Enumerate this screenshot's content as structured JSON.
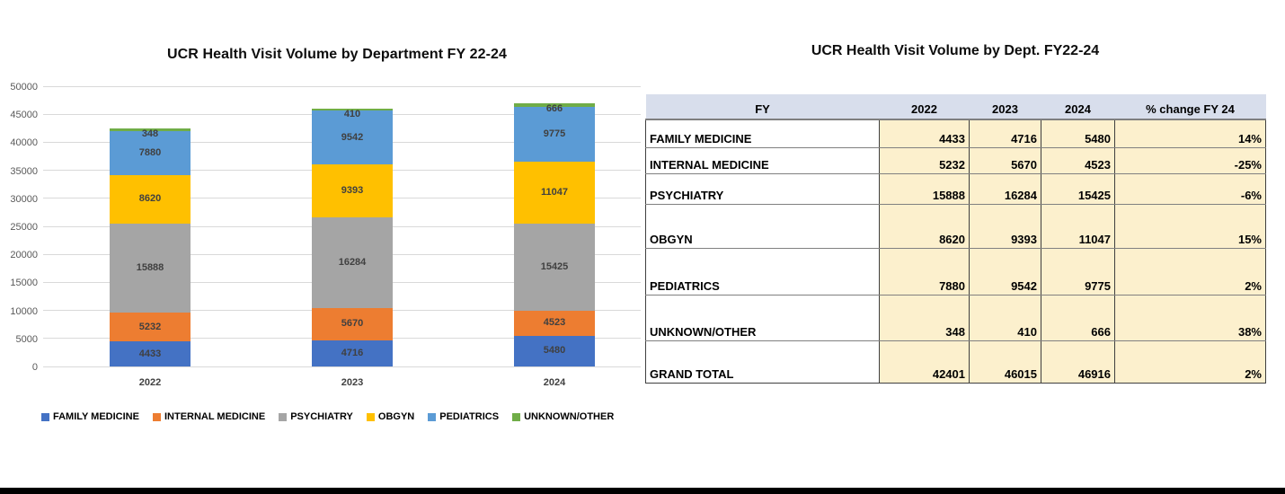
{
  "chart_data": [
    {
      "type": "bar",
      "stacked": true,
      "title": "UCR Health Visit Volume by Department FY 22-24",
      "categories": [
        "2022",
        "2023",
        "2024"
      ],
      "series": [
        {
          "name": "FAMILY MEDICINE",
          "color": "#4472C4",
          "values": [
            4433,
            4716,
            5480
          ]
        },
        {
          "name": "INTERNAL MEDICINE",
          "color": "#ED7D31",
          "values": [
            5232,
            5670,
            4523
          ]
        },
        {
          "name": "PSYCHIATRY",
          "color": "#A5A5A5",
          "values": [
            15888,
            16284,
            15425
          ]
        },
        {
          "name": "OBGYN",
          "color": "#FFC000",
          "values": [
            8620,
            9393,
            11047
          ]
        },
        {
          "name": "PEDIATRICS",
          "color": "#5B9BD5",
          "values": [
            7880,
            9542,
            9775
          ]
        },
        {
          "name": "UNKNOWN/OTHER",
          "color": "#70AD47",
          "values": [
            348,
            410,
            666
          ]
        }
      ],
      "totals": [
        42401,
        46015,
        46916
      ],
      "ylim": [
        0,
        50000
      ],
      "ytick_step": 5000,
      "grid": true,
      "legend_position": "bottom"
    },
    {
      "type": "table",
      "title": "UCR Health Visit Volume by Dept. FY22-24",
      "columns": [
        "FY",
        "2022",
        "2023",
        "2024",
        "% change FY 24"
      ],
      "rows": [
        [
          "FAMILY MEDICINE",
          "4433",
          "4716",
          "5480",
          "14%"
        ],
        [
          "INTERNAL MEDICINE",
          "5232",
          "5670",
          "4523",
          "-25%"
        ],
        [
          "PSYCHIATRY",
          "15888",
          "16284",
          "15425",
          "-6%"
        ],
        [
          "OBGYN",
          "8620",
          "9393",
          "11047",
          "15%"
        ],
        [
          "PEDIATRICS",
          "7880",
          "9542",
          "9775",
          "2%"
        ],
        [
          "UNKNOWN/OTHER",
          "348",
          "410",
          "666",
          "38%"
        ],
        [
          "GRAND TOTAL",
          "42401",
          "46015",
          "46916",
          "2%"
        ]
      ]
    }
  ],
  "colors": {
    "table_header_bg": "#D8DEEC",
    "table_cell_bg": "#FCF0CD",
    "table_label_bg": "#FFFFFF",
    "gridline": "#D9D9D9",
    "axis_text": "#595959",
    "data_label_text": "#404040",
    "bottom_bar": "#000000"
  }
}
